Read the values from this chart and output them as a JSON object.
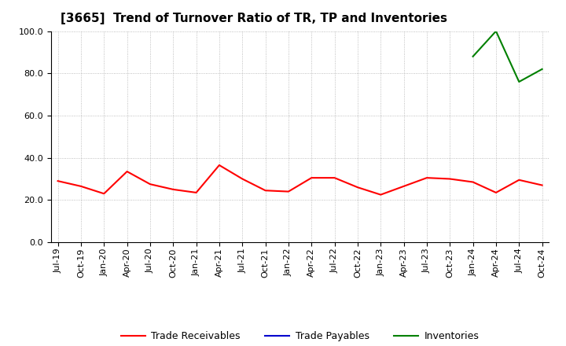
{
  "title": "[3665]  Trend of Turnover Ratio of TR, TP and Inventories",
  "xlabels": [
    "Jul-19",
    "Oct-19",
    "Jan-20",
    "Apr-20",
    "Jul-20",
    "Oct-20",
    "Jan-21",
    "Apr-21",
    "Jul-21",
    "Oct-21",
    "Jan-22",
    "Apr-22",
    "Jul-22",
    "Oct-22",
    "Jan-23",
    "Apr-23",
    "Jul-23",
    "Oct-23",
    "Jan-24",
    "Apr-24",
    "Jul-24",
    "Oct-24"
  ],
  "trade_receivables": [
    29.0,
    26.5,
    23.0,
    33.5,
    27.5,
    25.0,
    23.5,
    36.5,
    30.0,
    24.5,
    24.0,
    30.5,
    30.5,
    26.0,
    22.5,
    26.5,
    30.5,
    30.0,
    28.5,
    23.5,
    29.5,
    27.0
  ],
  "trade_payables": [
    null,
    null,
    null,
    null,
    null,
    null,
    null,
    null,
    null,
    null,
    null,
    null,
    null,
    null,
    null,
    null,
    null,
    null,
    null,
    null,
    null,
    null
  ],
  "inventories": [
    null,
    null,
    null,
    null,
    null,
    null,
    null,
    null,
    null,
    null,
    null,
    null,
    null,
    null,
    null,
    null,
    null,
    null,
    88.0,
    100.0,
    76.0,
    82.0
  ],
  "ylim": [
    0.0,
    100.0
  ],
  "yticks": [
    0.0,
    20.0,
    40.0,
    60.0,
    80.0,
    100.0
  ],
  "tr_color": "#ff0000",
  "tp_color": "#0000cd",
  "inv_color": "#008000",
  "background_color": "#ffffff",
  "grid_color": "#999999",
  "legend_labels": [
    "Trade Receivables",
    "Trade Payables",
    "Inventories"
  ],
  "title_fontsize": 11,
  "tick_fontsize": 8,
  "ytick_fontsize": 8
}
